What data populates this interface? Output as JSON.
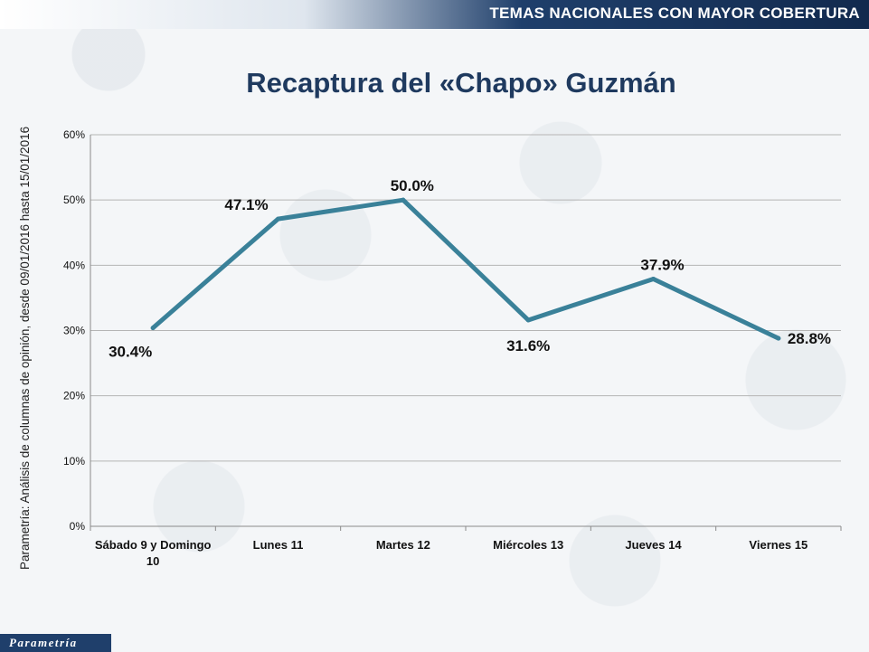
{
  "header": {
    "banner_text": "TEMAS NACIONALES CON MAYOR COBERTURA"
  },
  "footer": {
    "logo_text": "Parametría"
  },
  "source_note": "Parametría: Análisis de columnas de opinión, desde 09/01/2016 hasta 15/01/2016",
  "colors": {
    "line": "#3a8199",
    "grid": "#b5b5b5",
    "banner": "#1f3f6b"
  },
  "chart_data": {
    "type": "line",
    "title": "Recaptura del «Chapo» Guzmán",
    "categories": [
      [
        "Sábado 9 y Domingo",
        "10"
      ],
      [
        "Lunes 11"
      ],
      [
        "Martes 12"
      ],
      [
        "Miércoles 13"
      ],
      [
        "Jueves 14"
      ],
      [
        "Viernes 15"
      ]
    ],
    "values": [
      30.4,
      47.1,
      50.0,
      31.6,
      37.9,
      28.8
    ],
    "data_labels": [
      "30.4%",
      "47.1%",
      "50.0%",
      "31.6%",
      "37.9%",
      "28.8%"
    ],
    "y_ticks": [
      "0%",
      "10%",
      "20%",
      "30%",
      "40%",
      "50%",
      "60%"
    ],
    "ylim": [
      0,
      60
    ],
    "grid": true,
    "legend": "none"
  }
}
